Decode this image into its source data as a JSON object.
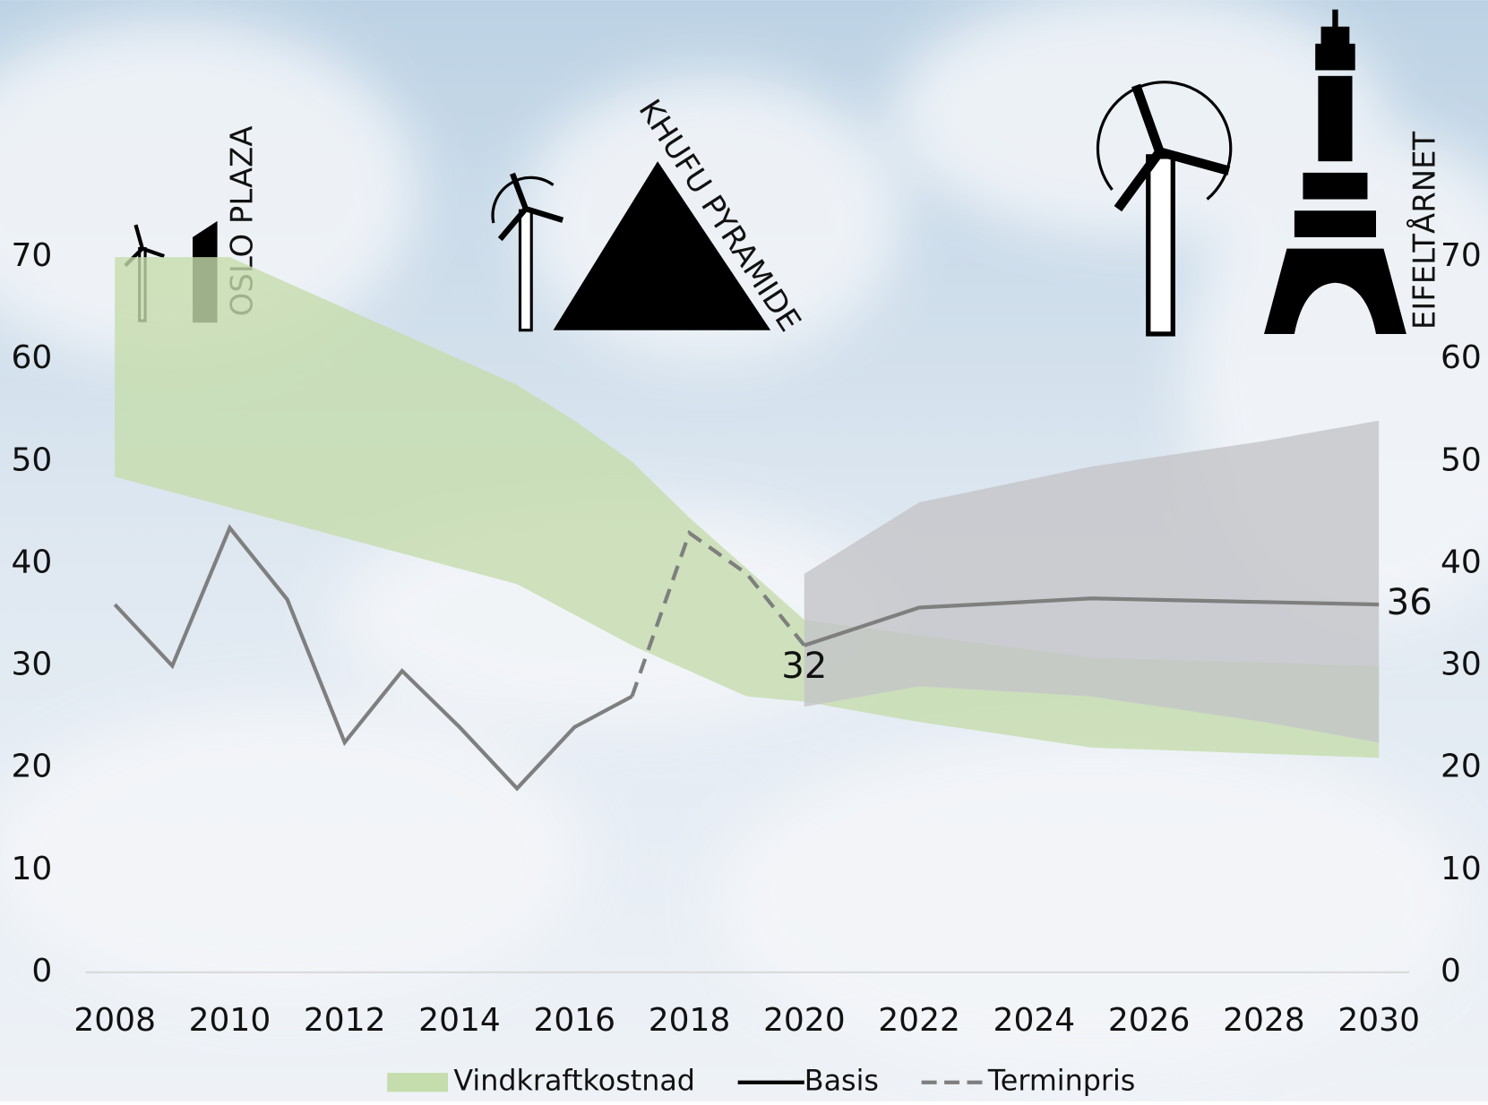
{
  "chart_data": {
    "type": "line",
    "xlim": [
      2008,
      2030
    ],
    "xticks": [
      2008,
      2010,
      2012,
      2014,
      2016,
      2018,
      2020,
      2022,
      2024,
      2026,
      2028,
      2030
    ],
    "ylim": [
      0,
      70
    ],
    "yticks": [
      0,
      10,
      20,
      30,
      40,
      50,
      60,
      70
    ],
    "y2lim": [
      0,
      70
    ],
    "y2ticks": [
      0,
      10,
      20,
      30,
      40,
      50,
      60,
      70
    ],
    "legend": "bottom",
    "series": [
      {
        "name": "Vindkraftkostnad",
        "color": "#c5dcac",
        "x": [
          2008,
          2009,
          2010,
          2011,
          2012,
          2013,
          2014,
          2015,
          2016,
          2017,
          2018,
          2019,
          2020,
          2022,
          2025,
          2030
        ],
        "upper": [
          70,
          70,
          70,
          67.5,
          65,
          62.5,
          60,
          57.5,
          54,
          50,
          44.5,
          39.5,
          34.5,
          33,
          30.8,
          30
        ],
        "lower": [
          48.5,
          47,
          45.5,
          44,
          42.5,
          41,
          39.5,
          38,
          35,
          32,
          29.5,
          27,
          26.5,
          24.5,
          22,
          21
        ]
      },
      {
        "color": "#c4c4c8",
        "x": [
          2020,
          2022,
          2025,
          2028,
          2030
        ],
        "upper": [
          39,
          46,
          49.5,
          52,
          54
        ],
        "lower": [
          26,
          28,
          27,
          24.5,
          22.5
        ]
      },
      {
        "name": "Basis",
        "color": "#7f7f7f",
        "x": [
          2008,
          2009,
          2010,
          2011,
          2012,
          2013,
          2014,
          2015,
          2016,
          2017,
          2018,
          2019,
          2020,
          2022,
          2025,
          2030
        ],
        "values": [
          36,
          30,
          43.5,
          36.5,
          22.5,
          29.5,
          24,
          18,
          24,
          27,
          null,
          null,
          32,
          35.7,
          36.6,
          36
        ],
        "value_labels": [
          null,
          null,
          null,
          null,
          null,
          null,
          null,
          null,
          null,
          null,
          null,
          null,
          "32",
          null,
          null,
          "36"
        ]
      },
      {
        "name": "Terminpris",
        "color": "#7f7f7f",
        "dash": true,
        "x": [
          2017,
          2018,
          2019,
          2020
        ],
        "values": [
          27,
          43,
          39,
          32
        ]
      }
    ],
    "annotations": [
      "OSLO PLAZA",
      "KHUFU PYRAMIDE",
      "EIFELTÅRNET"
    ]
  }
}
